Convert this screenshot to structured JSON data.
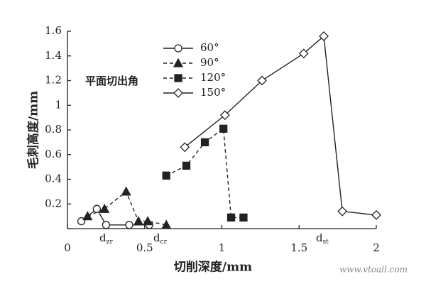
{
  "chart_data": {
    "type": "line",
    "x_label": "切削深度/mm",
    "y_label": "毛刺高度/mm",
    "legend_title": "平面切出角",
    "xlim": [
      0,
      2
    ],
    "xticks": [
      0,
      0.5,
      1,
      1.5,
      2
    ],
    "ylim": [
      0,
      1.6
    ],
    "yticks": [
      0,
      0.2,
      0.4,
      0.6,
      0.8,
      1,
      1.2,
      1.4,
      1.6
    ],
    "color": "#222222",
    "series": [
      {
        "name": "60°",
        "marker": "circle",
        "dash": false,
        "x": [
          0.09,
          0.19,
          0.25,
          0.4,
          0.53
        ],
        "values": [
          0.06,
          0.16,
          0.03,
          0.03,
          0.03
        ]
      },
      {
        "name": "90°",
        "marker": "triangle",
        "dash": true,
        "x": [
          0.13,
          0.24,
          0.38,
          0.46,
          0.52,
          0.64
        ],
        "values": [
          0.1,
          0.16,
          0.3,
          0.06,
          0.06,
          0.03
        ]
      },
      {
        "name": "120°",
        "marker": "square",
        "dash": true,
        "x": [
          0.64,
          0.77,
          0.89,
          1.01,
          1.06,
          1.14
        ],
        "values": [
          0.43,
          0.51,
          0.7,
          0.81,
          0.09,
          0.09
        ]
      },
      {
        "name": "150°",
        "marker": "diamond",
        "dash": false,
        "x": [
          0.76,
          1.02,
          1.26,
          1.53,
          1.66,
          1.78,
          2.0
        ],
        "values": [
          0.66,
          0.92,
          1.2,
          1.42,
          1.56,
          0.14,
          0.11
        ]
      }
    ],
    "annotations": [
      {
        "text": "d",
        "sub": "zr",
        "x": 0.25
      },
      {
        "text": "d",
        "sub": "cr",
        "x": 0.6
      },
      {
        "text": "d",
        "sub": "st",
        "x": 1.65
      }
    ],
    "watermark": "www.vtoall.com"
  }
}
